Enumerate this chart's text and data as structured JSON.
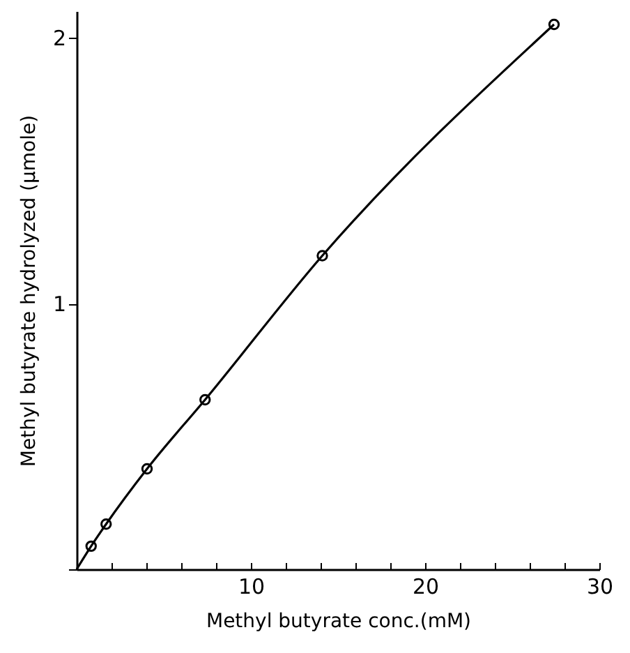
{
  "chart_data": {
    "type": "scatter",
    "xlabel": "Methyl butyrate conc.(mM)",
    "ylabel": "Methyl butyrate hydrolyzed (μmole)",
    "xlim": [
      0,
      30
    ],
    "ylim": [
      0,
      2.1
    ],
    "xticks": [
      {
        "value": 0,
        "label": null
      },
      {
        "value": 2,
        "label": null
      },
      {
        "value": 4,
        "label": null
      },
      {
        "value": 6,
        "label": null
      },
      {
        "value": 8,
        "label": null
      },
      10,
      {
        "value": 12,
        "label": null
      },
      {
        "value": 14,
        "label": null
      },
      {
        "value": 16,
        "label": null
      },
      {
        "value": 18,
        "label": null
      },
      20,
      {
        "value": 22,
        "label": null
      },
      {
        "value": 24,
        "label": null
      },
      {
        "value": 26,
        "label": null
      },
      {
        "value": 28,
        "label": null
      },
      30
    ],
    "yticks": [
      {
        "value": 0,
        "label": null
      },
      1,
      2
    ],
    "grid": false,
    "series": [
      {
        "type": "line",
        "color": "#000000",
        "marker": "none",
        "line_style": "solid",
        "x": [
          0,
          0.83,
          1.69,
          4.04,
          7.37,
          14.1,
          27.4
        ],
        "values": [
          0,
          0.087,
          0.17,
          0.378,
          0.638,
          1.18,
          2.05
        ]
      },
      {
        "color": "#000000",
        "marker": "circle",
        "x": [
          0.83,
          1.69,
          4.04,
          7.37,
          14.1,
          27.4
        ],
        "values": [
          0.087,
          0.17,
          0.378,
          0.638,
          1.18,
          2.05
        ]
      }
    ]
  }
}
